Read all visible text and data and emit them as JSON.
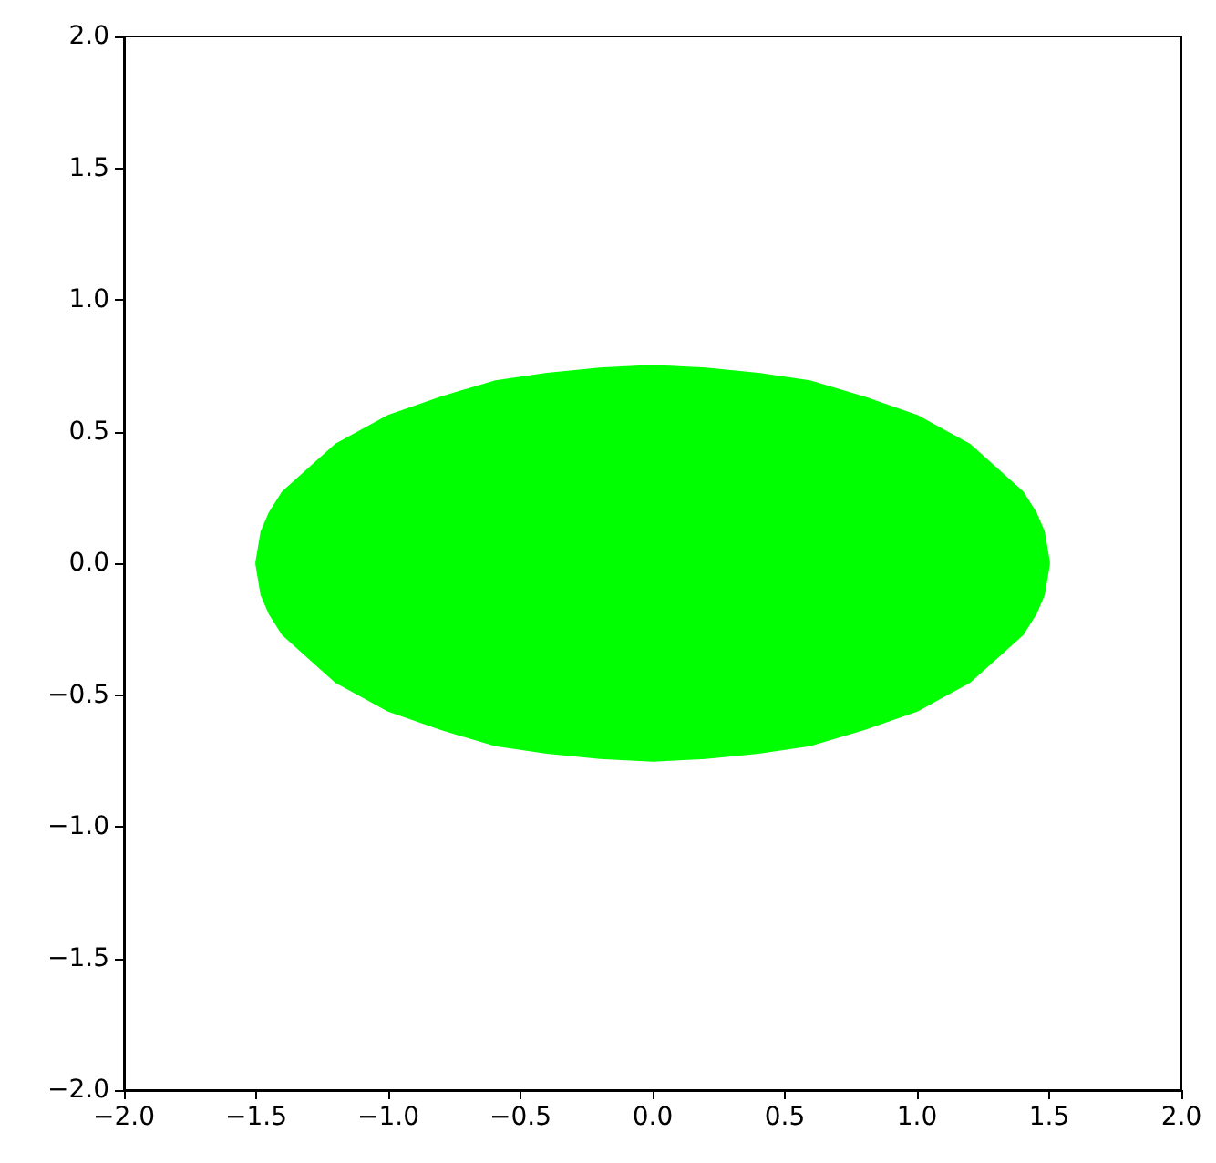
{
  "chart_data": {
    "type": "area",
    "x": [
      -1.5,
      -1.48,
      -1.45,
      -1.4,
      -1.2,
      -1.0,
      -0.8,
      -0.6,
      -0.4,
      -0.2,
      0,
      0.2,
      0.4,
      0.6,
      0.8,
      1.0,
      1.2,
      1.4,
      1.45,
      1.48,
      1.5
    ],
    "series": [
      {
        "color": "#00ff00",
        "values": [
          0,
          0.12,
          0.19,
          0.27,
          0.45,
          0.56,
          0.63,
          0.69,
          0.72,
          0.74,
          0.75,
          0.74,
          0.72,
          0.69,
          0.63,
          0.56,
          0.45,
          0.27,
          0.19,
          0.12,
          0
        ]
      },
      {
        "color": "#00ff00",
        "values": [
          0,
          -0.12,
          -0.19,
          -0.27,
          -0.45,
          -0.56,
          -0.63,
          -0.69,
          -0.72,
          -0.74,
          -0.75,
          -0.74,
          -0.72,
          -0.69,
          -0.63,
          -0.56,
          -0.45,
          -0.27,
          -0.19,
          -0.12,
          0
        ]
      }
    ],
    "xlim": [
      -2,
      2
    ],
    "ylim": [
      -2,
      2
    ],
    "xticks": [
      {
        "value": -2,
        "label": "−2.0"
      },
      {
        "value": -1.5,
        "label": "−1.5"
      },
      {
        "value": -1,
        "label": "−1.0"
      },
      {
        "value": -0.5,
        "label": "−0.5"
      },
      {
        "value": 0,
        "label": "0.0"
      },
      {
        "value": 0.5,
        "label": "0.5"
      },
      {
        "value": 1,
        "label": "1.0"
      },
      {
        "value": 1.5,
        "label": "1.5"
      },
      {
        "value": 2,
        "label": "2.0"
      }
    ],
    "yticks": [
      {
        "value": -2,
        "label": "−2.0"
      },
      {
        "value": -1.5,
        "label": "−1.5"
      },
      {
        "value": -1,
        "label": "−1.0"
      },
      {
        "value": -0.5,
        "label": "−0.5"
      },
      {
        "value": 0,
        "label": "0.0"
      },
      {
        "value": 0.5,
        "label": "0.5"
      },
      {
        "value": 1,
        "label": "1.0"
      },
      {
        "value": 1.5,
        "label": "1.5"
      },
      {
        "value": 2,
        "label": "2.0"
      }
    ],
    "grid": false
  }
}
